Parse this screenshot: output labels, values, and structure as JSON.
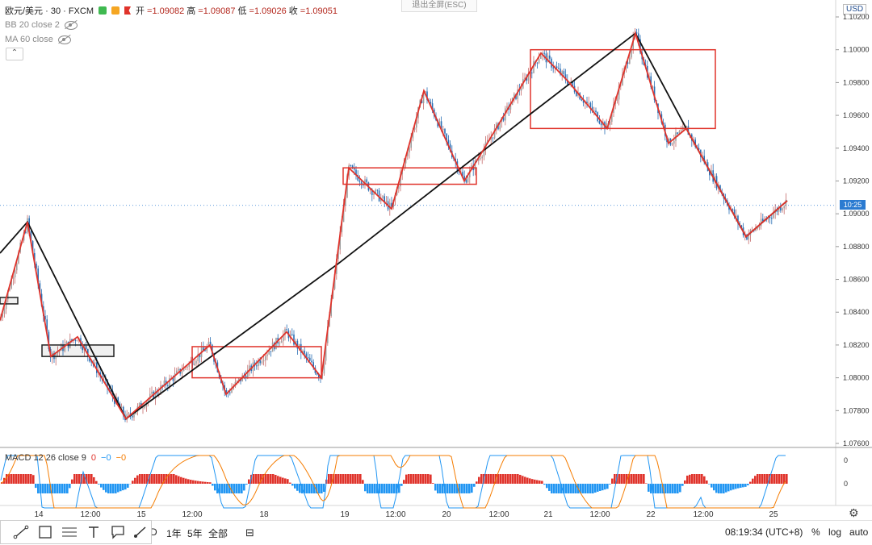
{
  "header": {
    "symbol": "欧元/美元 · 30 · FXCM",
    "ohlc": [
      {
        "label": "开",
        "value": "=1.09082"
      },
      {
        "label": "高",
        "value": "=1.09087"
      },
      {
        "label": "低",
        "value": "=1.09026"
      },
      {
        "label": "收",
        "value": "=1.09051"
      }
    ],
    "exit_fullscreen": "退出全屏(ESC)",
    "currency": "USD"
  },
  "indicators": {
    "bb": "BB 20 close 2",
    "ma": "MA 60 close",
    "macd_name": "MACD 12 26 close 9",
    "macd_vals": [
      "0",
      "−0",
      "−0"
    ],
    "macd_val_colors": [
      "#e0332b",
      "#2196f3",
      "#f57c00"
    ]
  },
  "price_axis": {
    "ticks": [
      "1.10200",
      "1.10000",
      "1.09800",
      "1.09600",
      "1.09400",
      "1.09200",
      "1.09000",
      "1.08800",
      "1.08600",
      "1.08400",
      "1.08200",
      "1.08000",
      "1.07800",
      "1.07600"
    ],
    "current_badge": "10:25"
  },
  "macd_axis": {
    "ticks": [
      "0",
      "0"
    ]
  },
  "time_axis": {
    "ticks": [
      "14",
      "12:00",
      "15",
      "12:00",
      "18",
      "19",
      "12:00",
      "20",
      "12:00",
      "21",
      "12:00",
      "22",
      "12:00",
      "25"
    ]
  },
  "toolbar": {
    "ranges": [
      "D",
      "1年",
      "5年",
      "全部"
    ],
    "clock": "08:19:34 (UTC+8)",
    "percent": "%",
    "log": "log",
    "auto": "auto"
  },
  "chart_data": {
    "type": "candlestick",
    "instrument": "欧元/美元 · 30 · FXCM",
    "ylim": [
      1.076,
      1.102
    ],
    "swing_path_black": [
      [
        0,
        1.0876
      ],
      [
        34,
        1.0895
      ],
      [
        156,
        1.0775
      ],
      [
        420,
        1.087
      ],
      [
        660,
        1.0962
      ],
      [
        787,
        1.101
      ],
      [
        850,
        1.0952
      ],
      [
        924,
        1.0886
      ],
      [
        975,
        1.0908
      ]
    ],
    "swing_path_red": [
      [
        0,
        1.0835
      ],
      [
        34,
        1.0895
      ],
      [
        63,
        1.0813
      ],
      [
        96,
        1.0825
      ],
      [
        156,
        1.0775
      ],
      [
        260,
        1.082
      ],
      [
        280,
        1.079
      ],
      [
        355,
        1.0828
      ],
      [
        398,
        1.08
      ],
      [
        432,
        1.0928
      ],
      [
        485,
        1.0903
      ],
      [
        525,
        1.0975
      ],
      [
        575,
        1.092
      ],
      [
        600,
        1.094
      ],
      [
        670,
        1.0998
      ],
      [
        705,
        1.098
      ],
      [
        752,
        1.0952
      ],
      [
        787,
        1.101
      ],
      [
        828,
        1.0943
      ],
      [
        850,
        1.0952
      ],
      [
        924,
        1.0886
      ],
      [
        975,
        1.0908
      ]
    ],
    "boxes": [
      {
        "color": "red",
        "t": [
          657,
          886
        ],
        "p": [
          1.0952,
          1.1
        ]
      },
      {
        "color": "red",
        "t": [
          425,
          590
        ],
        "p": [
          1.0918,
          1.0928
        ]
      },
      {
        "color": "red",
        "t": [
          238,
          398
        ],
        "p": [
          1.08,
          1.0819
        ]
      },
      {
        "color": "black",
        "t": [
          52,
          141
        ],
        "p": [
          1.0813,
          1.082
        ]
      },
      {
        "color": "black",
        "t": [
          0,
          22
        ],
        "p": [
          1.0848,
          1.0849
        ]
      }
    ],
    "current_price": 1.09051
  }
}
